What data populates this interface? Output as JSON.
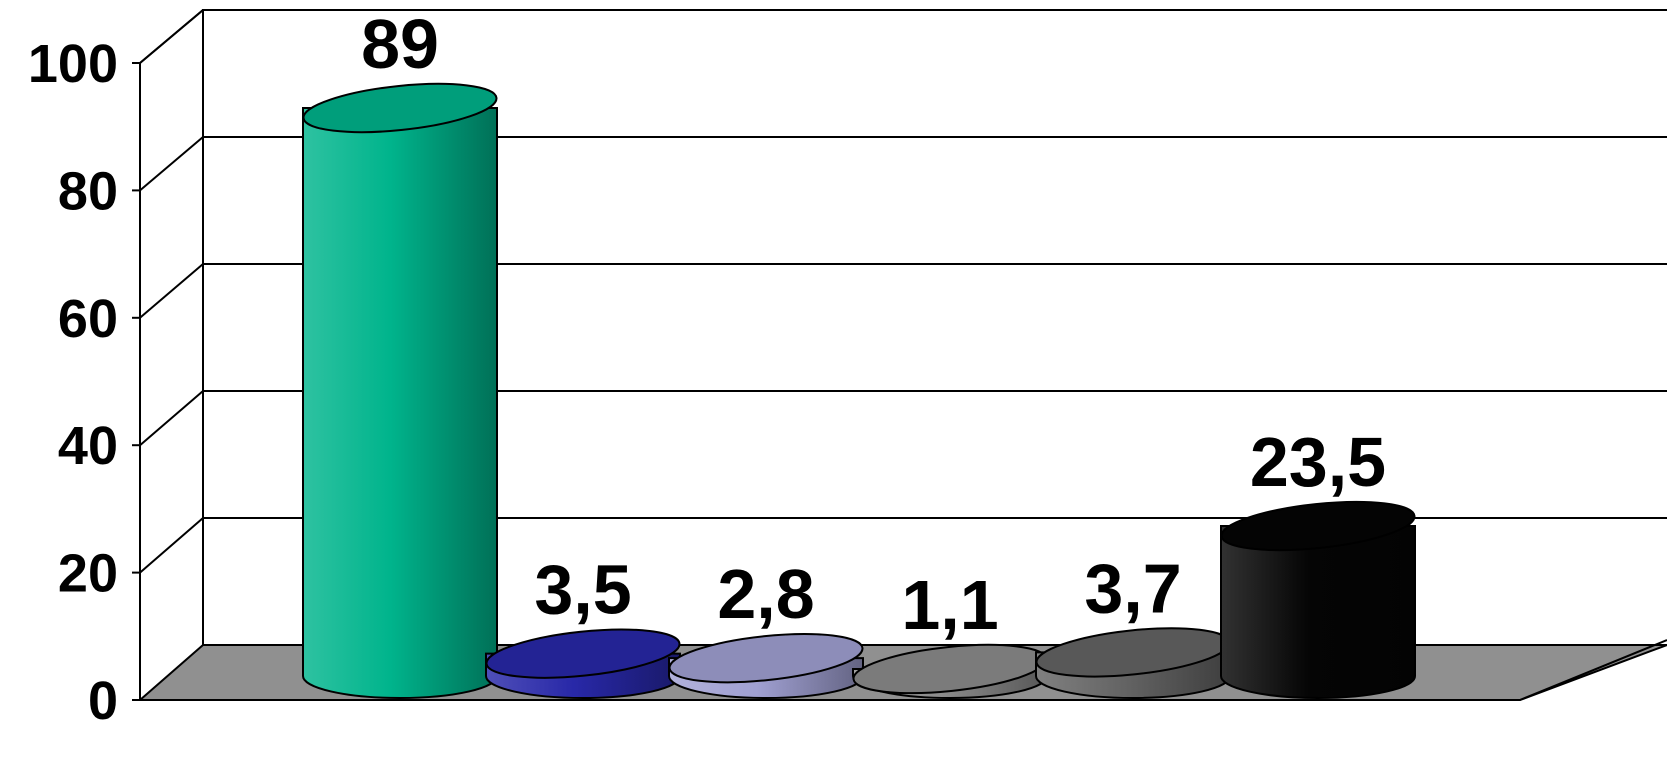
{
  "chart_data": {
    "type": "bar",
    "style": "3d-cylinder",
    "categories": [
      "",
      "",
      "",
      "",
      "",
      ""
    ],
    "values": [
      89,
      3.5,
      2.8,
      1.1,
      3.7,
      23.5
    ],
    "value_labels": [
      "89",
      "3,5",
      "2,8",
      "1,1",
      "3,7",
      "23,5"
    ],
    "colors": [
      "#00b48c",
      "#2828a8",
      "#a0a0d2",
      "#8c8c8c",
      "#646464",
      "#050505"
    ],
    "yticks": [
      "0",
      "20",
      "40",
      "60",
      "80",
      "100"
    ],
    "ylim": [
      0,
      100
    ],
    "grid": true,
    "legend": "none",
    "title": "",
    "xlabel": "",
    "ylabel": ""
  }
}
